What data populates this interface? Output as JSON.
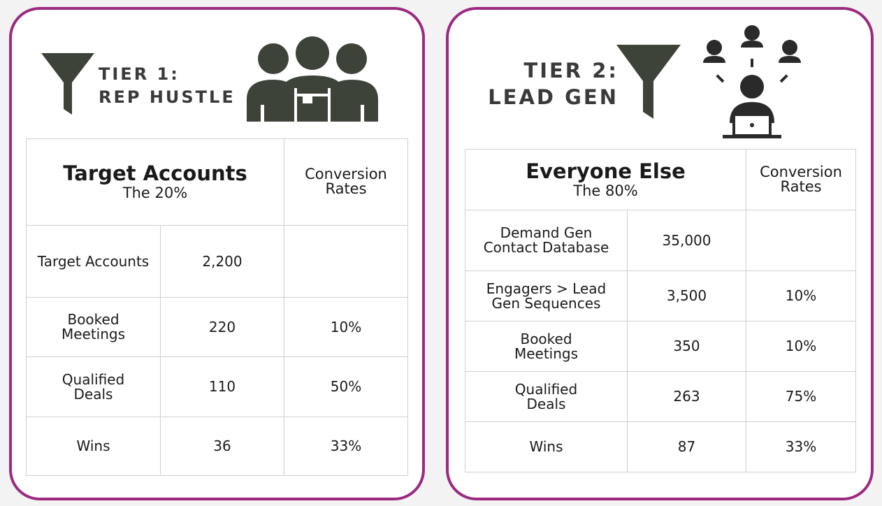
{
  "colors": {
    "card_border": "#9b2a80",
    "icon": "#3d4338",
    "text": "#1a1a1a",
    "grid": "#cfcfcf"
  },
  "tier1": {
    "title": "TIER 1:\nREP HUSTLE",
    "icons": [
      "funnel-icon",
      "team-icon"
    ],
    "header": {
      "title": "Target Accounts",
      "subtitle": "The 20%",
      "conversion_label": "Conversion\nRates"
    },
    "rows": [
      {
        "label": "Target Accounts",
        "value": "2,200",
        "rate": ""
      },
      {
        "label": "Booked\nMeetings",
        "value": "220",
        "rate": "10%"
      },
      {
        "label": "Qualified\nDeals",
        "value": "110",
        "rate": "50%"
      },
      {
        "label": "Wins",
        "value": "36",
        "rate": "33%"
      }
    ]
  },
  "tier2": {
    "title": "TIER 2:\nLEAD GEN",
    "icons": [
      "funnel-icon",
      "network-people-icon"
    ],
    "header": {
      "title": "Everyone Else",
      "subtitle": "The 80%",
      "conversion_label": "Conversion\nRates"
    },
    "rows": [
      {
        "label": "Demand Gen\nContact Database",
        "value": "35,000",
        "rate": ""
      },
      {
        "label": "Engagers > Lead\nGen Sequences",
        "value": "3,500",
        "rate": "10%"
      },
      {
        "label": "Booked\nMeetings",
        "value": "350",
        "rate": "10%"
      },
      {
        "label": "Qualified\nDeals",
        "value": "263",
        "rate": "75%"
      },
      {
        "label": "Wins",
        "value": "87",
        "rate": "33%"
      }
    ]
  }
}
